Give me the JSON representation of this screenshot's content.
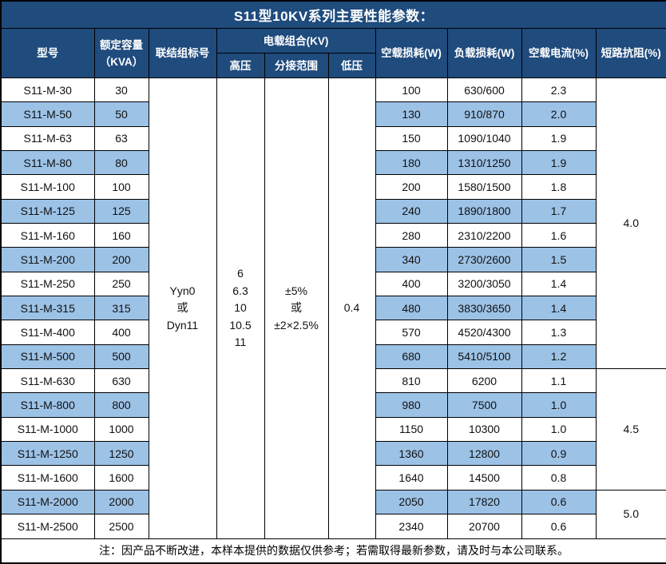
{
  "title": "S11型10KV系列主要性能参数：",
  "colors": {
    "header_bg": "#1F4B7D",
    "stripe_bg": "#9CC2E6",
    "border": "#000000",
    "header_text": "#FFFFFF"
  },
  "headers": {
    "model": "型号",
    "capacity": "额定容量\n（KVA）",
    "connection": "联结组标号",
    "voltage_combination": "电载组合(KV)",
    "high_voltage": "高压",
    "tap_range": "分接范围",
    "low_voltage": "低压",
    "no_load_loss": "空载损耗(W)",
    "load_loss": "负载损耗(W)",
    "no_load_current": "空载电流(%)",
    "short_circuit_impedance": "短路抗阻(%)"
  },
  "shared": {
    "connection": "Yyn0\n或\nDyn11",
    "high_voltage": "6\n6.3\n10\n10.5\n11",
    "tap_range": "±5%\n或\n±2×2.5%",
    "low_voltage": "0.4"
  },
  "impedance_groups": [
    {
      "value": "4.0",
      "rows": 12
    },
    {
      "value": "4.5",
      "rows": 5
    },
    {
      "value": "5.0",
      "rows": 2
    }
  ],
  "rows": [
    {
      "model": "S11-M-30",
      "capacity": "30",
      "no_load_loss": "100",
      "load_loss": "630/600",
      "no_load_current": "2.3"
    },
    {
      "model": "S11-M-50",
      "capacity": "50",
      "no_load_loss": "130",
      "load_loss": "910/870",
      "no_load_current": "2.0"
    },
    {
      "model": "S11-M-63",
      "capacity": "63",
      "no_load_loss": "150",
      "load_loss": "1090/1040",
      "no_load_current": "1.9"
    },
    {
      "model": "S11-M-80",
      "capacity": "80",
      "no_load_loss": "180",
      "load_loss": "1310/1250",
      "no_load_current": "1.9"
    },
    {
      "model": "S11-M-100",
      "capacity": "100",
      "no_load_loss": "200",
      "load_loss": "1580/1500",
      "no_load_current": "1.8"
    },
    {
      "model": "S11-M-125",
      "capacity": "125",
      "no_load_loss": "240",
      "load_loss": "1890/1800",
      "no_load_current": "1.7"
    },
    {
      "model": "S11-M-160",
      "capacity": "160",
      "no_load_loss": "280",
      "load_loss": "2310/2200",
      "no_load_current": "1.6"
    },
    {
      "model": "S11-M-200",
      "capacity": "200",
      "no_load_loss": "340",
      "load_loss": "2730/2600",
      "no_load_current": "1.5"
    },
    {
      "model": "S11-M-250",
      "capacity": "250",
      "no_load_loss": "400",
      "load_loss": "3200/3050",
      "no_load_current": "1.4"
    },
    {
      "model": "S11-M-315",
      "capacity": "315",
      "no_load_loss": "480",
      "load_loss": "3830/3650",
      "no_load_current": "1.4"
    },
    {
      "model": "S11-M-400",
      "capacity": "400",
      "no_load_loss": "570",
      "load_loss": "4520/4300",
      "no_load_current": "1.3"
    },
    {
      "model": "S11-M-500",
      "capacity": "500",
      "no_load_loss": "680",
      "load_loss": "5410/5100",
      "no_load_current": "1.2"
    },
    {
      "model": "S11-M-630",
      "capacity": "630",
      "no_load_loss": "810",
      "load_loss": "6200",
      "no_load_current": "1.1"
    },
    {
      "model": "S11-M-800",
      "capacity": "800",
      "no_load_loss": "980",
      "load_loss": "7500",
      "no_load_current": "1.0"
    },
    {
      "model": "S11-M-1000",
      "capacity": "1000",
      "no_load_loss": "1150",
      "load_loss": "10300",
      "no_load_current": "1.0"
    },
    {
      "model": "S11-M-1250",
      "capacity": "1250",
      "no_load_loss": "1360",
      "load_loss": "12800",
      "no_load_current": "0.9"
    },
    {
      "model": "S11-M-1600",
      "capacity": "1600",
      "no_load_loss": "1640",
      "load_loss": "14500",
      "no_load_current": "0.8"
    },
    {
      "model": "S11-M-2000",
      "capacity": "2000",
      "no_load_loss": "2050",
      "load_loss": "17820",
      "no_load_current": "0.6"
    },
    {
      "model": "S11-M-2500",
      "capacity": "2500",
      "no_load_loss": "2340",
      "load_loss": "20700",
      "no_load_current": "0.6"
    }
  ],
  "note": "注：因产品不断改进，本样本提供的数据仅供参考；若需取得最新参数，请及时与本公司联系。"
}
